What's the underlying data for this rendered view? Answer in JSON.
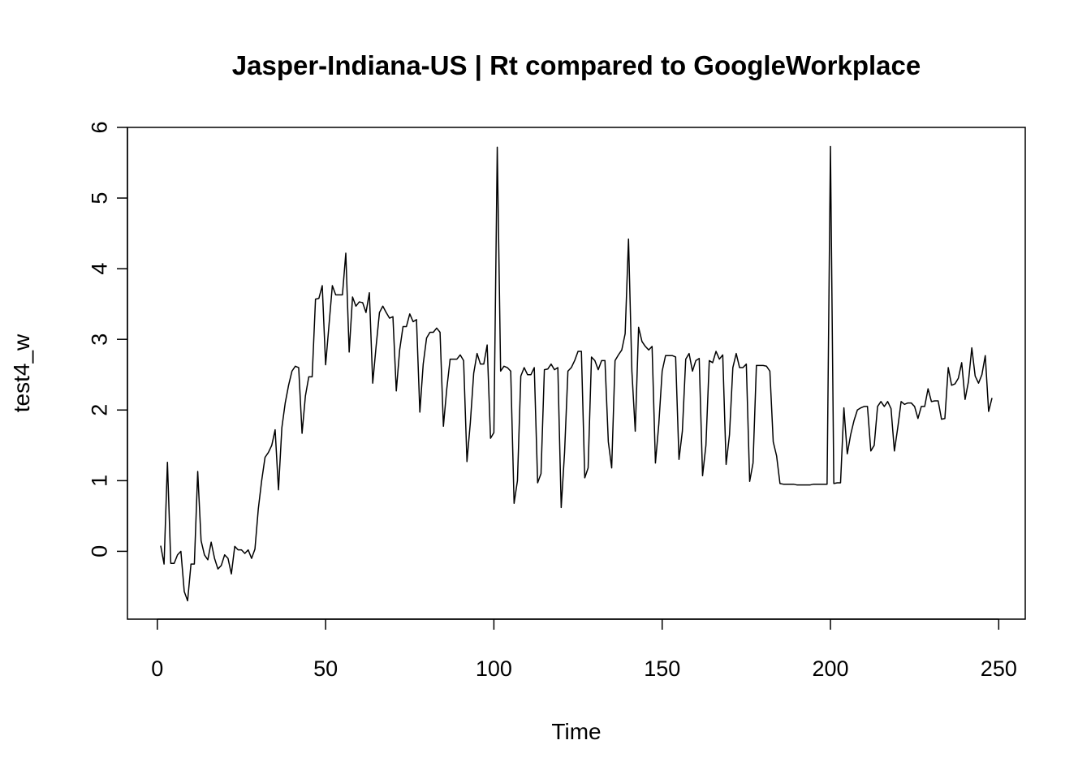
{
  "chart_data": {
    "type": "line",
    "title": "Jasper-Indiana-US | Rt compared to GoogleWorkplace",
    "xlabel": "Time",
    "ylabel": "test4_w",
    "x": [
      1,
      2,
      3,
      4,
      5,
      6,
      7,
      8,
      9,
      10,
      11,
      12,
      13,
      14,
      15,
      16,
      17,
      18,
      19,
      20,
      21,
      22,
      23,
      24,
      25,
      26,
      27,
      28,
      29,
      30,
      31,
      32,
      33,
      34,
      35,
      36,
      37,
      38,
      39,
      40,
      41,
      42,
      43,
      44,
      45,
      46,
      47,
      48,
      49,
      50,
      51,
      52,
      53,
      54,
      55,
      56,
      57,
      58,
      59,
      60,
      61,
      62,
      63,
      64,
      65,
      66,
      67,
      68,
      69,
      70,
      71,
      72,
      73,
      74,
      75,
      76,
      77,
      78,
      79,
      80,
      81,
      82,
      83,
      84,
      85,
      86,
      87,
      88,
      89,
      90,
      91,
      92,
      93,
      94,
      95,
      96,
      97,
      98,
      99,
      100,
      101,
      102,
      103,
      104,
      105,
      106,
      107,
      108,
      109,
      110,
      111,
      112,
      113,
      114,
      115,
      116,
      117,
      118,
      119,
      120,
      121,
      122,
      123,
      124,
      125,
      126,
      127,
      128,
      129,
      130,
      131,
      132,
      133,
      134,
      135,
      136,
      137,
      138,
      139,
      140,
      141,
      142,
      143,
      144,
      145,
      146,
      147,
      148,
      149,
      150,
      151,
      152,
      153,
      154,
      155,
      156,
      157,
      158,
      159,
      160,
      161,
      162,
      163,
      164,
      165,
      166,
      167,
      168,
      169,
      170,
      171,
      172,
      173,
      174,
      175,
      176,
      177,
      178,
      179,
      180,
      181,
      182,
      183,
      184,
      185,
      186,
      187,
      188,
      189,
      190,
      191,
      192,
      193,
      194,
      195,
      196,
      197,
      198,
      199,
      200,
      201,
      202,
      203,
      204,
      205,
      206,
      207,
      208,
      209,
      210,
      211,
      212,
      213,
      214,
      215,
      216,
      217,
      218,
      219,
      220,
      221,
      222,
      223,
      224,
      225,
      226,
      227,
      228,
      229,
      230,
      231,
      232,
      233,
      234,
      235,
      236,
      237,
      238,
      239,
      240,
      241,
      242,
      243,
      244,
      245,
      246,
      247,
      248
    ],
    "values": [
      0.08,
      -0.18,
      1.26,
      -0.17,
      -0.17,
      -0.05,
      0.0,
      -0.57,
      -0.7,
      -0.18,
      -0.18,
      1.13,
      0.15,
      -0.05,
      -0.12,
      0.13,
      -0.1,
      -0.25,
      -0.2,
      -0.05,
      -0.1,
      -0.32,
      0.07,
      0.02,
      0.02,
      -0.03,
      0.02,
      -0.1,
      0.03,
      0.6,
      1.0,
      1.33,
      1.4,
      1.5,
      1.72,
      0.87,
      1.75,
      2.1,
      2.35,
      2.55,
      2.62,
      2.6,
      1.67,
      2.2,
      2.47,
      2.47,
      3.57,
      3.58,
      3.76,
      2.64,
      3.2,
      3.76,
      3.63,
      3.63,
      3.63,
      4.22,
      2.82,
      3.6,
      3.47,
      3.53,
      3.52,
      3.38,
      3.66,
      2.38,
      2.9,
      3.38,
      3.47,
      3.38,
      3.3,
      3.32,
      2.27,
      2.85,
      3.18,
      3.18,
      3.36,
      3.25,
      3.28,
      1.97,
      2.65,
      3.02,
      3.1,
      3.1,
      3.16,
      3.1,
      1.77,
      2.3,
      2.72,
      2.72,
      2.72,
      2.78,
      2.7,
      1.27,
      1.82,
      2.52,
      2.8,
      2.65,
      2.65,
      2.92,
      1.6,
      1.68,
      5.72,
      2.55,
      2.62,
      2.6,
      2.55,
      0.68,
      1.0,
      2.48,
      2.6,
      2.5,
      2.5,
      2.6,
      0.97,
      1.1,
      2.57,
      2.58,
      2.65,
      2.57,
      2.6,
      0.62,
      1.4,
      2.55,
      2.6,
      2.7,
      2.83,
      2.83,
      1.04,
      1.18,
      2.75,
      2.7,
      2.57,
      2.7,
      2.7,
      1.55,
      1.18,
      2.7,
      2.78,
      2.85,
      3.08,
      4.42,
      2.55,
      1.7,
      3.17,
      2.97,
      2.9,
      2.85,
      2.9,
      1.25,
      1.8,
      2.55,
      2.77,
      2.77,
      2.77,
      2.75,
      1.3,
      1.7,
      2.72,
      2.8,
      2.55,
      2.7,
      2.73,
      1.07,
      1.5,
      2.7,
      2.67,
      2.83,
      2.72,
      2.78,
      1.23,
      1.65,
      2.6,
      2.8,
      2.6,
      2.6,
      2.65,
      0.99,
      1.25,
      2.63,
      2.63,
      2.63,
      2.62,
      2.55,
      1.55,
      1.35,
      0.96,
      0.95,
      0.95,
      0.95,
      0.95,
      0.94,
      0.94,
      0.94,
      0.94,
      0.94,
      0.95,
      0.95,
      0.95,
      0.95,
      0.95,
      5.73,
      0.96,
      0.97,
      0.97,
      2.03,
      1.38,
      1.65,
      1.85,
      2.0,
      2.03,
      2.05,
      2.05,
      1.42,
      1.5,
      2.05,
      2.12,
      2.05,
      2.12,
      2.02,
      1.42,
      1.75,
      2.12,
      2.08,
      2.1,
      2.1,
      2.05,
      1.88,
      2.05,
      2.05,
      2.3,
      2.12,
      2.13,
      2.13,
      1.87,
      1.88,
      2.6,
      2.35,
      2.37,
      2.45,
      2.67,
      2.15,
      2.4,
      2.88,
      2.48,
      2.38,
      2.5,
      2.77,
      1.98,
      2.17
    ],
    "color": "#000000",
    "xlim": [
      -8.88,
      257.88
    ],
    "xticks": [
      0,
      50,
      100,
      150,
      200,
      250
    ],
    "ylim": [
      -0.96,
      6.0
    ],
    "yticks": [
      0,
      1,
      2,
      3,
      4,
      5,
      6
    ]
  }
}
